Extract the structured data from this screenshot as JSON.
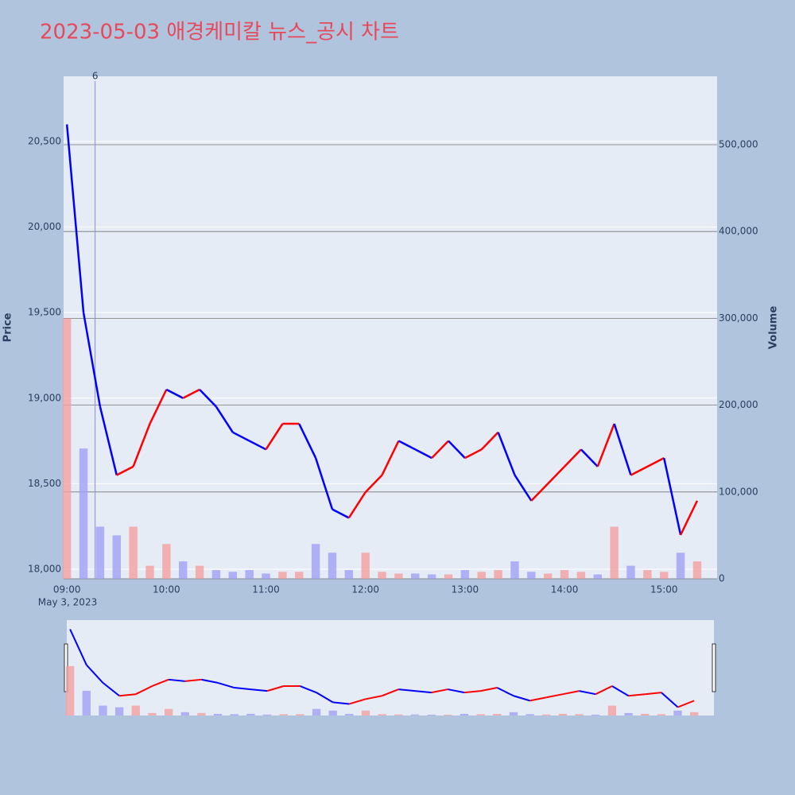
{
  "chart_data": {
    "type": "price-volume",
    "title": "2023-05-03 애경케미칼 뉴스_공시 차트",
    "x": [
      "09:00",
      "09:10",
      "09:20",
      "09:30",
      "09:40",
      "09:50",
      "10:00",
      "10:10",
      "10:20",
      "10:30",
      "10:40",
      "10:50",
      "11:00",
      "11:10",
      "11:20",
      "11:30",
      "11:40",
      "11:50",
      "12:00",
      "12:10",
      "12:20",
      "12:30",
      "12:40",
      "12:50",
      "13:00",
      "13:10",
      "13:20",
      "13:30",
      "13:40",
      "13:50",
      "14:00",
      "14:10",
      "14:20",
      "14:30",
      "14:40",
      "14:50",
      "15:00",
      "15:10",
      "15:20"
    ],
    "xlim": [
      "08:58",
      "15:32"
    ],
    "xticks": [
      "09:00",
      "10:00",
      "11:00",
      "12:00",
      "13:00",
      "14:00",
      "15:00"
    ],
    "date_label": "May 3, 2023",
    "y_label": "Price",
    "y2_label": "Volume",
    "series": [
      {
        "name": "Price",
        "up_color": "#ff0000",
        "down_color": "#0000ff",
        "values": [
          20600,
          19500,
          18950,
          18550,
          18600,
          18850,
          19050,
          19000,
          19050,
          18950,
          18800,
          18750,
          18700,
          18850,
          18850,
          18650,
          18350,
          18300,
          18450,
          18550,
          18750,
          18700,
          18650,
          18750,
          18650,
          18700,
          18800,
          18550,
          18400,
          18500,
          18600,
          18700,
          18600,
          18850,
          18550,
          18600,
          18650,
          18200,
          18400
        ]
      },
      {
        "name": "Volume",
        "axis": "y2",
        "up_color": "#f4a0a0",
        "down_color": "#a0a0f4",
        "values": [
          300000,
          150000,
          60000,
          50000,
          60000,
          15000,
          40000,
          20000,
          15000,
          10000,
          8000,
          10000,
          6000,
          8000,
          8000,
          40000,
          30000,
          10000,
          30000,
          8000,
          6000,
          6000,
          5000,
          5000,
          10000,
          8000,
          10000,
          20000,
          8000,
          6000,
          10000,
          8000,
          5000,
          60000,
          15000,
          10000,
          8000,
          30000,
          20000
        ]
      }
    ],
    "ylim": [
      17944,
      20881
    ],
    "yticks": [
      {
        "value": 18000,
        "label": "18,000"
      },
      {
        "value": 18500,
        "label": "18,500"
      },
      {
        "value": 19000,
        "label": "19,000"
      },
      {
        "value": 19500,
        "label": "19,500"
      },
      {
        "value": 20000,
        "label": "20,000"
      },
      {
        "value": 20500,
        "label": "20,500"
      }
    ],
    "y2lim": [
      0,
      578755
    ],
    "y2ticks": [
      0,
      {
        "value": 100000,
        "label": "100,000"
      },
      {
        "value": 200000,
        "label": "200,000"
      },
      {
        "value": 300000,
        "label": "300,000"
      },
      {
        "value": 400000,
        "label": "400,000"
      },
      {
        "value": 500000,
        "label": "500,000"
      }
    ],
    "annotations": [
      {
        "x": "09:17",
        "text": "6"
      }
    ]
  }
}
